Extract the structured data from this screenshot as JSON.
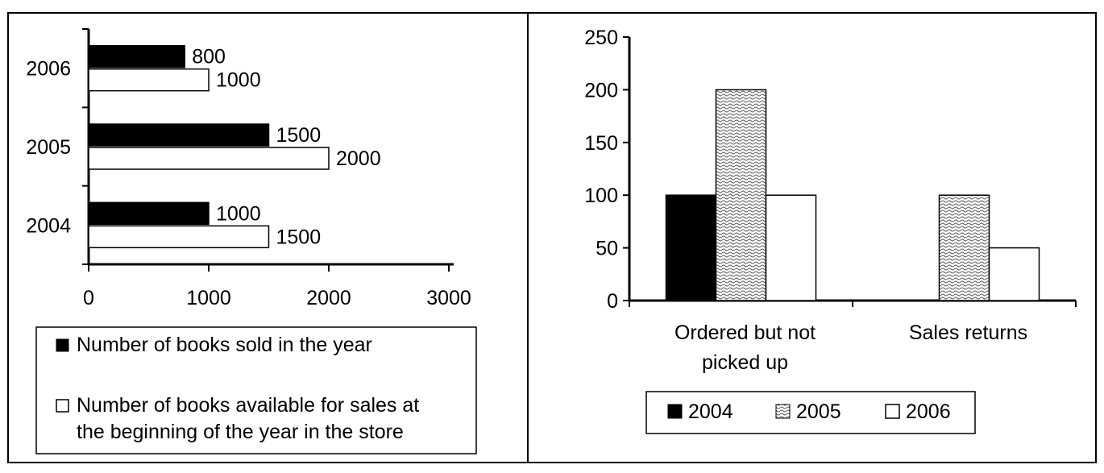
{
  "chart_data": [
    {
      "type": "bar",
      "orientation": "horizontal",
      "categories": [
        "2006",
        "2005",
        "2004"
      ],
      "series": [
        {
          "name": "Number of books sold in the year",
          "values": [
            800,
            1500,
            1000
          ],
          "color": "#000000",
          "fill": "solid"
        },
        {
          "name": "Number of books available for sales at the beginning of the year in the store",
          "values": [
            1000,
            2000,
            1500
          ],
          "color": "#ffffff",
          "fill": "outline"
        }
      ],
      "data_labels": [
        [
          "800",
          "1500",
          "1000"
        ],
        [
          "1000",
          "2000",
          "1500"
        ]
      ],
      "xlim": [
        0,
        3000
      ],
      "x_ticks": [
        "0",
        "1000",
        "2000",
        "3000"
      ],
      "grid": false,
      "legend_position": "bottom",
      "legend_lines": [
        [
          "Number of books sold in the year"
        ],
        [
          "Number of books available for sales at",
          "the beginning of the year in the store"
        ]
      ]
    },
    {
      "type": "bar",
      "orientation": "vertical",
      "categories": [
        "Ordered but not picked up",
        "Sales returns"
      ],
      "category_lines": [
        [
          "Ordered but not",
          "picked up"
        ],
        [
          "Sales returns"
        ]
      ],
      "series": [
        {
          "name": "2004",
          "values": [
            100,
            0
          ],
          "color": "#000000",
          "fill": "solid"
        },
        {
          "name": "2005",
          "values": [
            200,
            100
          ],
          "color": "#bdbdbd",
          "fill": "dotted-wave"
        },
        {
          "name": "2006",
          "values": [
            100,
            50
          ],
          "color": "#ffffff",
          "fill": "outline"
        }
      ],
      "ylim": [
        0,
        250
      ],
      "y_ticks": [
        "0",
        "50",
        "100",
        "150",
        "200",
        "250"
      ],
      "grid": false,
      "legend_position": "bottom"
    }
  ]
}
